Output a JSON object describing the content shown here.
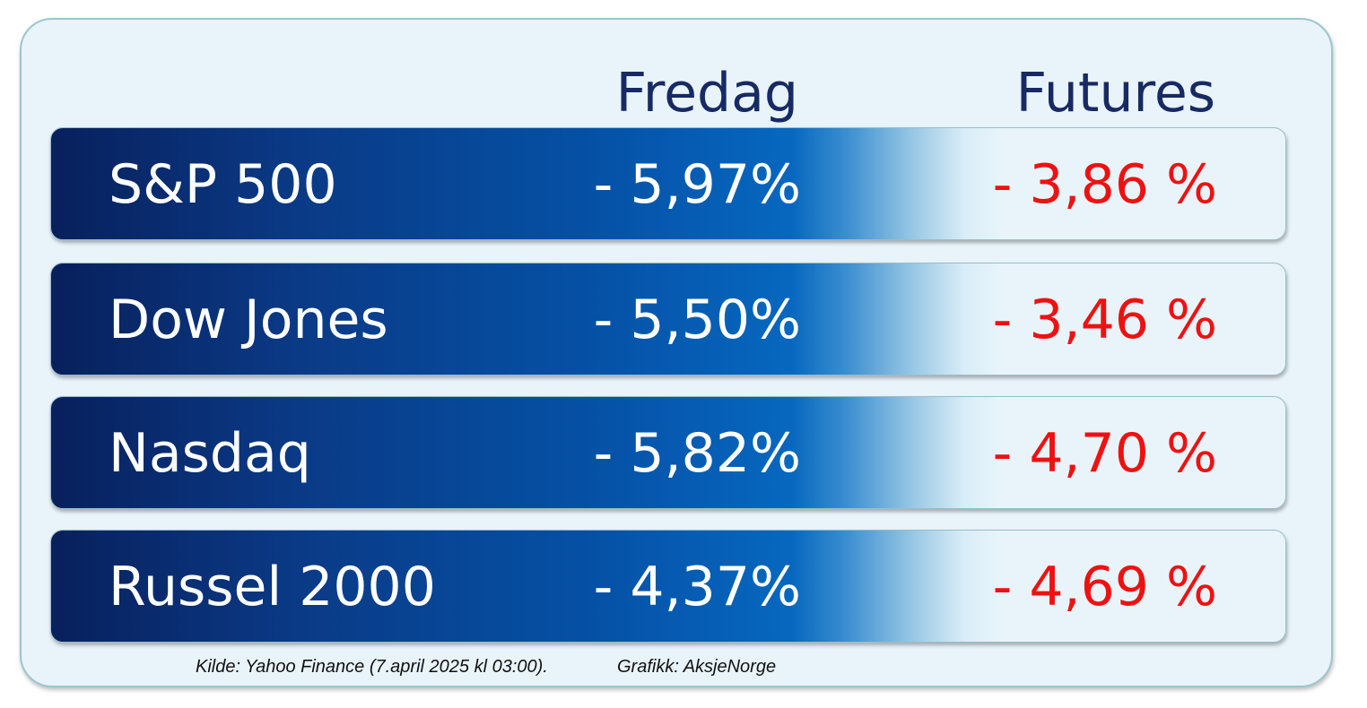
{
  "headers": {
    "fredag": "Fredag",
    "futures": "Futures"
  },
  "rows": [
    {
      "name": "S&P 500",
      "fredag": "- 5,97%",
      "futures": "- 3,86 %"
    },
    {
      "name": "Dow Jones",
      "fredag": "- 5,50%",
      "futures": "- 3,46 %"
    },
    {
      "name": "Nasdaq",
      "fredag": "- 5,82%",
      "futures": "- 4,70 %"
    },
    {
      "name": "Russel 2000",
      "fredag": "- 4,37%",
      "futures": "- 4,69 %"
    }
  ],
  "footer": {
    "source": "Kilde: Yahoo Finance (7.april 2025 kl 03:00).",
    "credit": "Grafikk: AksjeNorge"
  },
  "colors": {
    "header_text": "#172a63",
    "futures_text": "#ef1111",
    "row_dark": "#08205c",
    "card_background": "#e9f4fa"
  }
}
